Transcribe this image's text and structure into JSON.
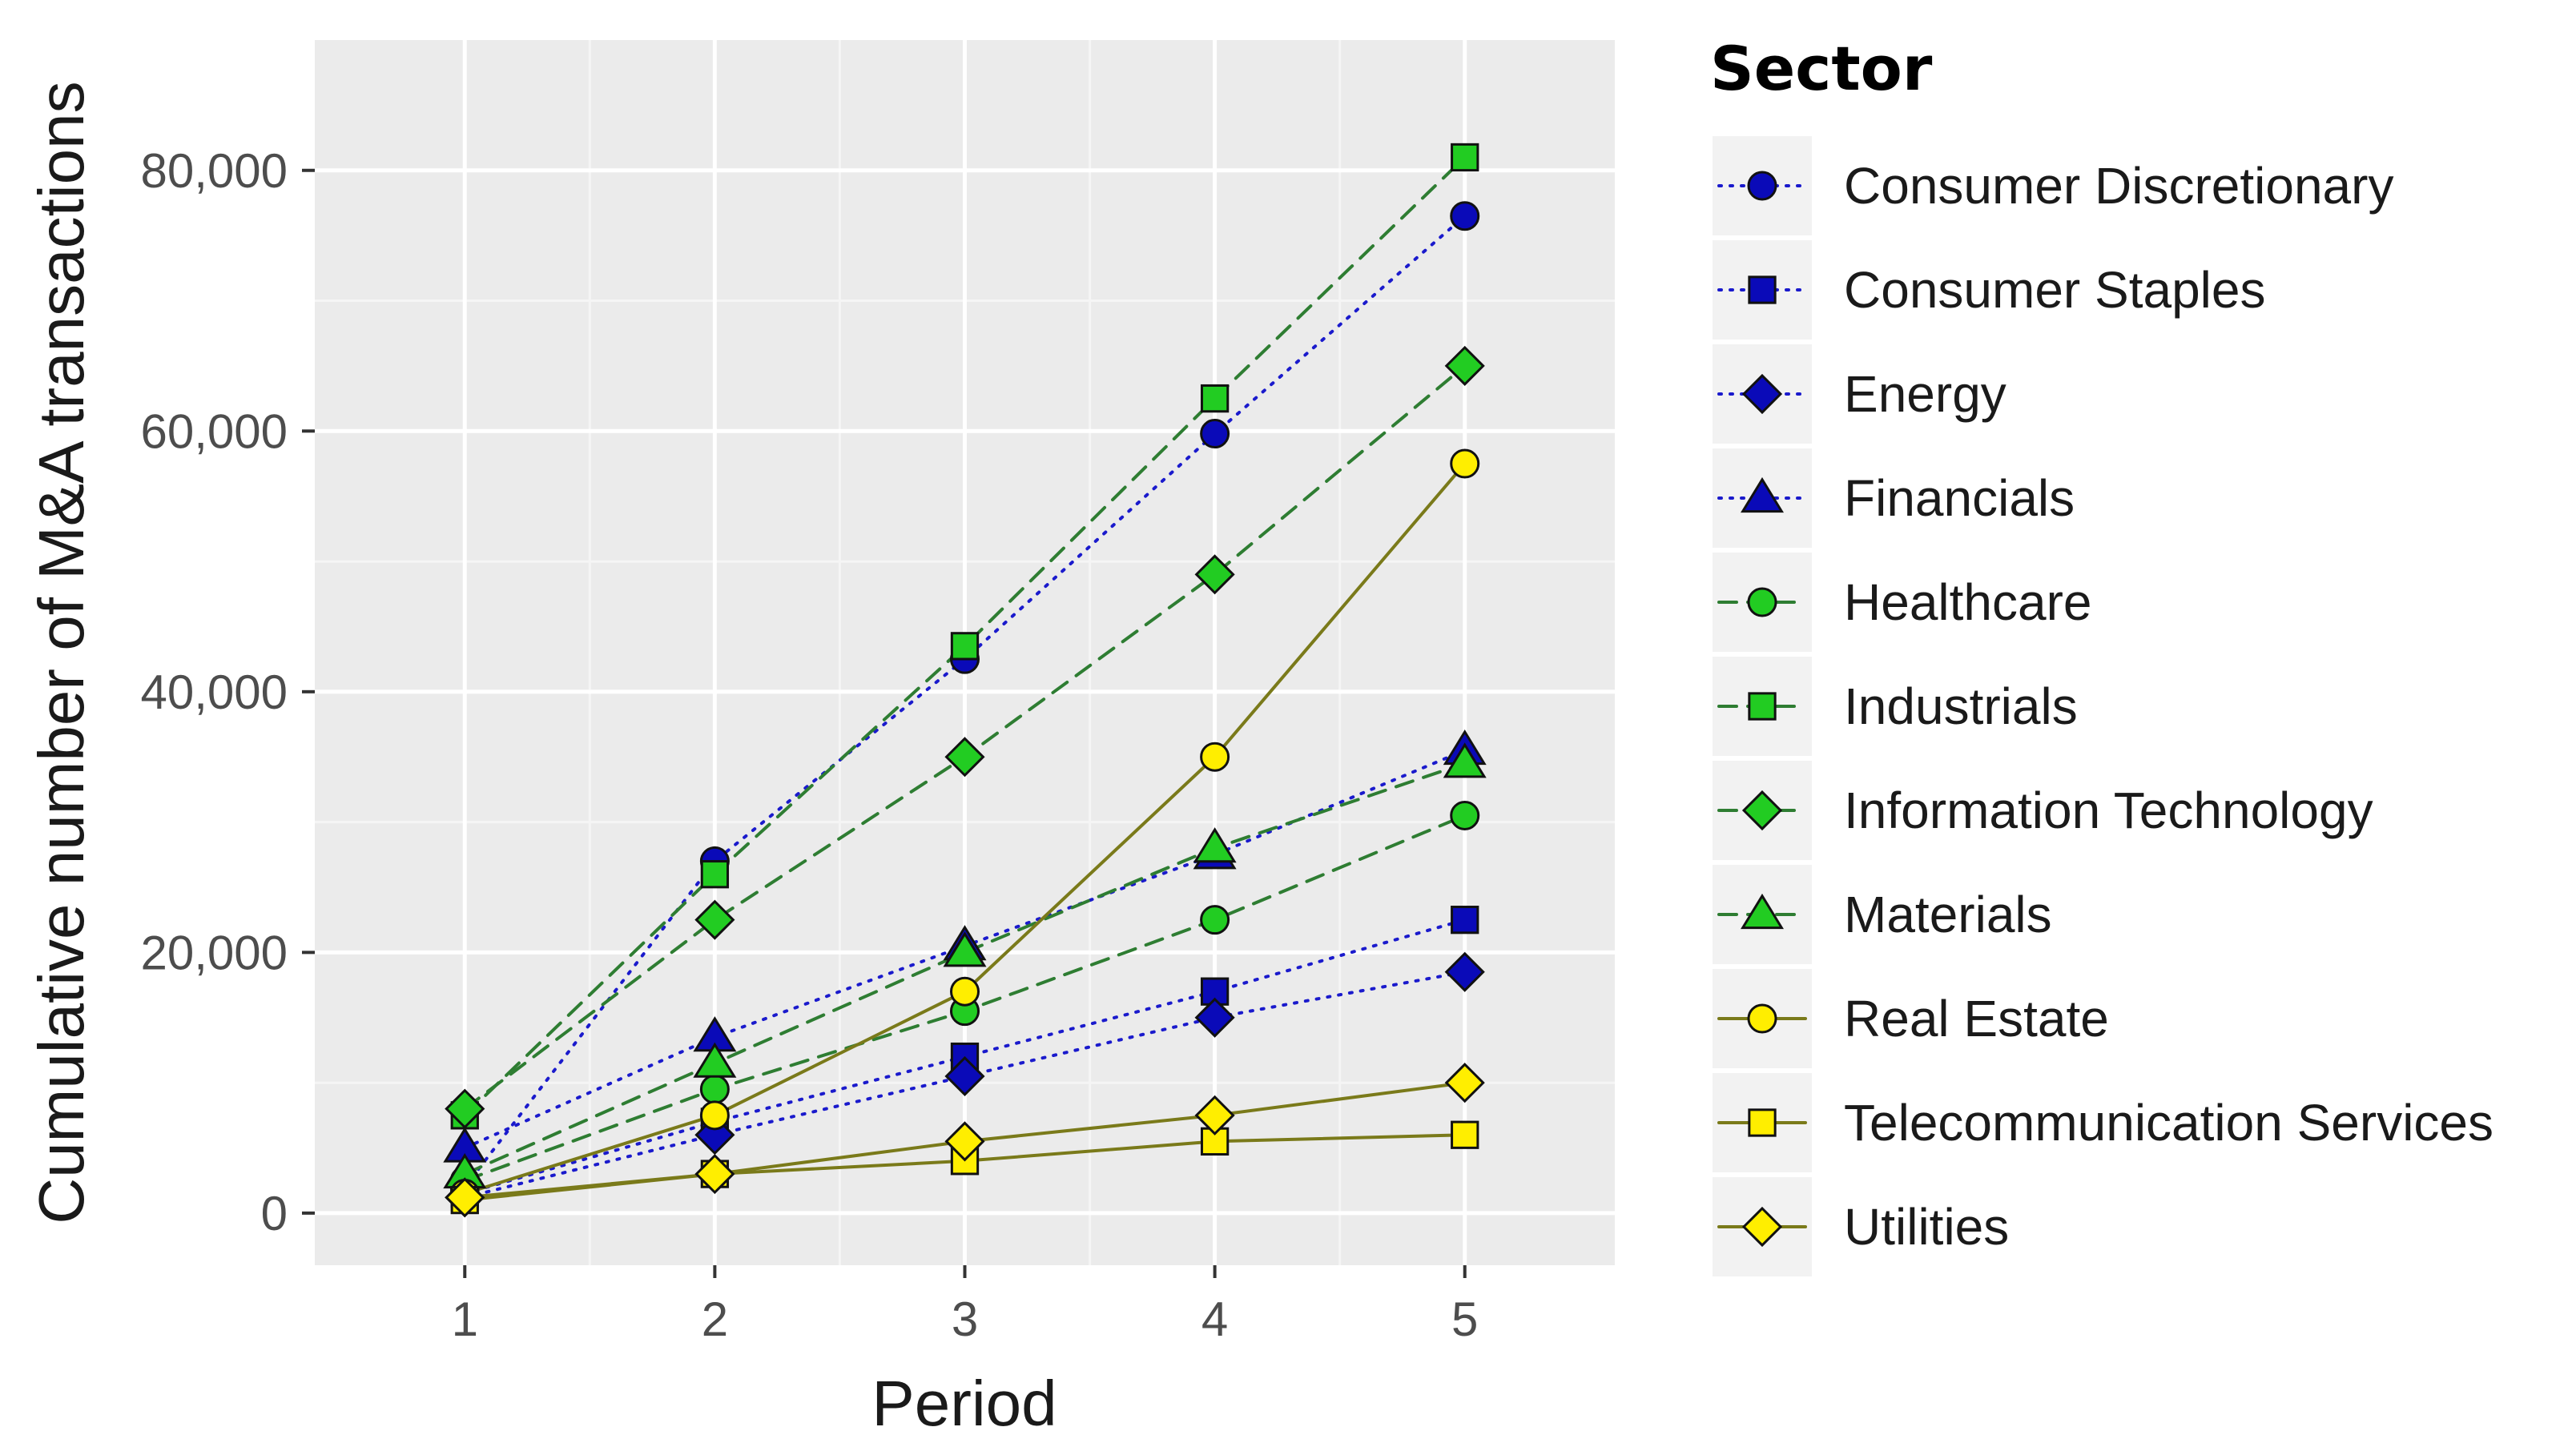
{
  "chart_data": {
    "type": "line",
    "title": "",
    "xlabel": "Period",
    "ylabel": "Cumulative number of M&A transactions",
    "x": [
      1,
      2,
      3,
      4,
      5
    ],
    "x_tick_labels": [
      "1",
      "2",
      "3",
      "4",
      "5"
    ],
    "xlim": [
      0.4,
      5.6
    ],
    "ylim": [
      -4000,
      90000
    ],
    "y_ticks": [
      0,
      20000,
      40000,
      60000,
      80000
    ],
    "y_tick_labels": [
      "0",
      "20,000",
      "40,000",
      "60,000",
      "80,000"
    ],
    "grid": true,
    "legend_title": "Sector",
    "legend_position": "right",
    "series": [
      {
        "name": "Consumer Discretionary",
        "values": [
          2000,
          27000,
          42500,
          59800,
          76500
        ],
        "shape": "circle",
        "line": "dotted",
        "color": "#1a1acc",
        "fill": "#0a0ab8"
      },
      {
        "name": "Consumer Staples",
        "values": [
          1500,
          7000,
          12000,
          17000,
          22500
        ],
        "shape": "square",
        "line": "dotted",
        "color": "#1a1acc",
        "fill": "#0a0ab8"
      },
      {
        "name": "Energy",
        "values": [
          1200,
          6000,
          10500,
          15000,
          18500
        ],
        "shape": "diamond",
        "line": "dotted",
        "color": "#1a1acc",
        "fill": "#0a0ab8"
      },
      {
        "name": "Financials",
        "values": [
          5000,
          13500,
          20500,
          27500,
          35500
        ],
        "shape": "triangle",
        "line": "dotted",
        "color": "#1a1acc",
        "fill": "#0a0ab8"
      },
      {
        "name": "Healthcare",
        "values": [
          2500,
          9500,
          15500,
          22500,
          30500
        ],
        "shape": "circle",
        "line": "dashed",
        "color": "#2e7d32",
        "fill": "#22cc22"
      },
      {
        "name": "Industrials",
        "values": [
          7500,
          26000,
          43500,
          62500,
          81000
        ],
        "shape": "square",
        "line": "dashed",
        "color": "#2e7d32",
        "fill": "#22cc22"
      },
      {
        "name": "Information Technology",
        "values": [
          8000,
          22500,
          35000,
          49000,
          65000
        ],
        "shape": "diamond",
        "line": "dashed",
        "color": "#2e7d32",
        "fill": "#22cc22"
      },
      {
        "name": "Materials",
        "values": [
          3000,
          11500,
          20000,
          28000,
          34500
        ],
        "shape": "triangle",
        "line": "dashed",
        "color": "#2e7d32",
        "fill": "#22cc22"
      },
      {
        "name": "Real Estate",
        "values": [
          1500,
          7500,
          17000,
          35000,
          57500
        ],
        "shape": "circle",
        "line": "solid",
        "color": "#7a7a1a",
        "fill": "#ffee00"
      },
      {
        "name": "Telecommunication Services",
        "values": [
          1000,
          3000,
          4000,
          5500,
          6000
        ],
        "shape": "square",
        "line": "solid",
        "color": "#7a7a1a",
        "fill": "#ffee00"
      },
      {
        "name": "Utilities",
        "values": [
          1200,
          3000,
          5500,
          7500,
          10000
        ],
        "shape": "diamond",
        "line": "solid",
        "color": "#7a7a1a",
        "fill": "#ffee00"
      }
    ]
  }
}
